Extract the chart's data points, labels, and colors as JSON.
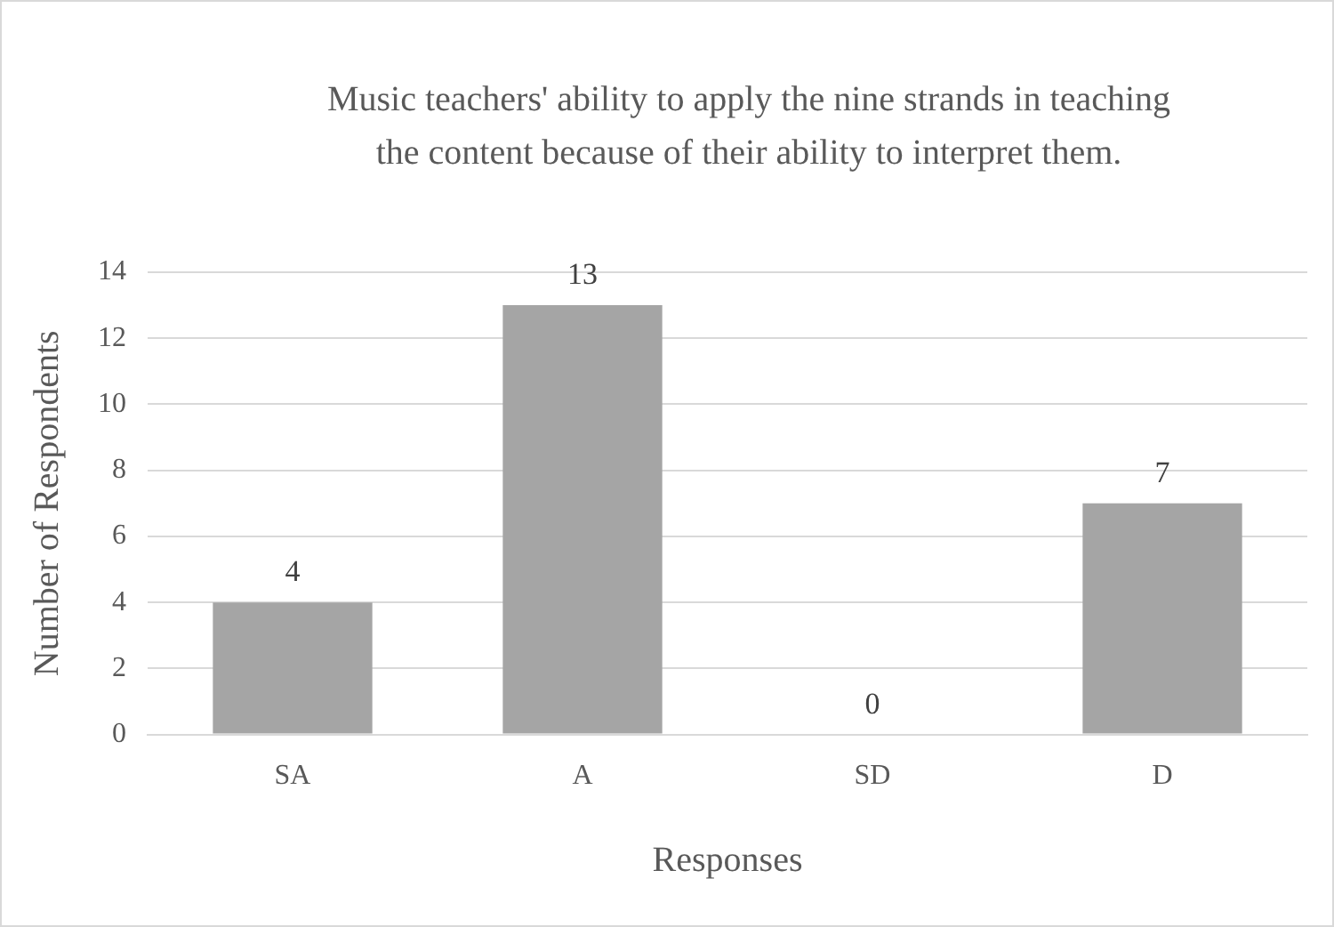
{
  "chart_data": {
    "type": "bar",
    "title": "Music teachers' ability to apply the nine strands in teaching the content because of their ability to interpret them.",
    "xlabel": "Responses",
    "ylabel": "Number of Respondents",
    "categories": [
      "SA",
      "A",
      "SD",
      "D"
    ],
    "values": [
      4,
      13,
      0,
      7
    ],
    "color": "#a5a5a5",
    "ylim": [
      0,
      14
    ],
    "yticks": [
      0,
      2,
      4,
      6,
      8,
      10,
      12,
      14
    ],
    "grid": "y",
    "data_labels": true,
    "legend": false
  }
}
